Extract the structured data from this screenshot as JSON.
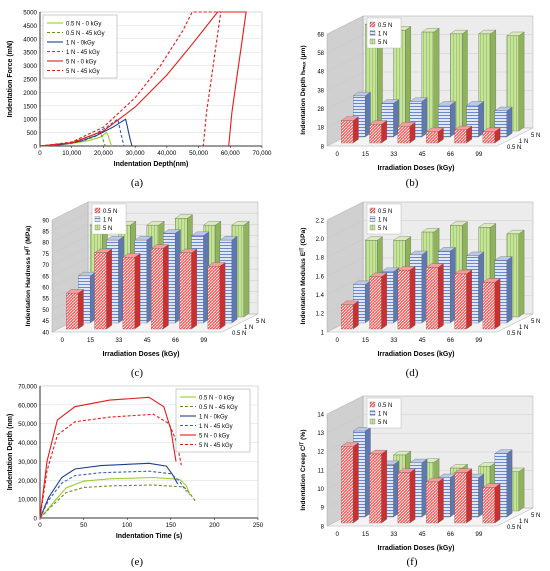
{
  "colors": {
    "green_light": "#9acd32",
    "green_dark": "#6b8e23",
    "blue_dark": "#1f3f8f",
    "blue_mid": "#3a5fb8",
    "red": "#e51b1b",
    "red_fill": "#f36b6b",
    "blue_fill": "#8fa8d8",
    "green_fill": "#b6d98b",
    "axis": "#000000",
    "grid": "#d9d9d9"
  },
  "captions": {
    "a": "(a)",
    "b": "(b)",
    "c": "(c)",
    "d": "(d)",
    "e": "(e)",
    "f": "(f)"
  },
  "chart_data": [
    {
      "id": "a",
      "type": "line",
      "xlabel": "Indentation Depth(nm)",
      "ylabel": "Indentation Force (mN)",
      "xlim": [
        0,
        70000
      ],
      "ylim": [
        0,
        5000
      ],
      "xticks": [
        "0",
        "10,000",
        "20,000",
        "30,000",
        "40,000",
        "50,000",
        "60,000",
        "70,000"
      ],
      "yticks": [
        "0",
        "500",
        "1000",
        "1500",
        "2000",
        "2500",
        "3000",
        "3500",
        "4000",
        "4500",
        "5000"
      ],
      "legend_position": "top-left",
      "series": [
        {
          "name": "0.5 N - 0 kGy",
          "color": "#9acd32",
          "dash": false,
          "load": [
            [
              0,
              0
            ],
            [
              5000,
              30
            ],
            [
              10000,
              90
            ],
            [
              15000,
              190
            ],
            [
              19000,
              330
            ],
            [
              21000,
              500
            ]
          ],
          "unload": [
            [
              21000,
              500
            ],
            [
              21500,
              380
            ],
            [
              21900,
              230
            ],
            [
              22300,
              90
            ],
            [
              22600,
              0
            ]
          ]
        },
        {
          "name": "0.5 N - 45 kGy",
          "color": "#6b8e23",
          "dash": true,
          "load": [
            [
              0,
              0
            ],
            [
              5000,
              30
            ],
            [
              10000,
              100
            ],
            [
              14000,
              210
            ],
            [
              17500,
              360
            ],
            [
              19000,
              500
            ]
          ],
          "unload": [
            [
              19000,
              500
            ],
            [
              19500,
              380
            ],
            [
              19900,
              230
            ],
            [
              20300,
              90
            ],
            [
              20600,
              0
            ]
          ]
        },
        {
          "name": "1 N - 0kGy",
          "color": "#1f3f8f",
          "dash": false,
          "load": [
            [
              0,
              0
            ],
            [
              7000,
              60
            ],
            [
              13000,
              190
            ],
            [
              18000,
              400
            ],
            [
              23000,
              700
            ],
            [
              27000,
              1000
            ]
          ],
          "unload": [
            [
              27000,
              1000
            ],
            [
              27500,
              750
            ],
            [
              28000,
              470
            ],
            [
              28500,
              220
            ],
            [
              29000,
              0
            ]
          ]
        },
        {
          "name": "1 N - 45 kGy",
          "color": "#3a5fb8",
          "dash": true,
          "load": [
            [
              0,
              0
            ],
            [
              7000,
              70
            ],
            [
              12000,
              200
            ],
            [
              17000,
              420
            ],
            [
              21000,
              700
            ],
            [
              24500,
              1000
            ]
          ],
          "unload": [
            [
              24500,
              1000
            ],
            [
              25000,
              750
            ],
            [
              25500,
              470
            ],
            [
              26000,
              220
            ],
            [
              26500,
              0
            ]
          ]
        },
        {
          "name": "5 N - 0 kGy",
          "color": "#e51b1b",
          "dash": false,
          "load": [
            [
              0,
              0
            ],
            [
              10000,
              120
            ],
            [
              20000,
              560
            ],
            [
              30000,
              1450
            ],
            [
              40000,
              2650
            ],
            [
              48000,
              3800
            ],
            [
              54000,
              4700
            ],
            [
              56000,
              5000
            ],
            [
              65000,
              5000
            ]
          ],
          "unload": [
            [
              65000,
              5000
            ],
            [
              63500,
              3750
            ],
            [
              62000,
              2500
            ],
            [
              60500,
              1250
            ],
            [
              59500,
              0
            ]
          ]
        },
        {
          "name": "5 N - 45 kGy",
          "color": "#e51b1b",
          "dash": true,
          "load": [
            [
              0,
              0
            ],
            [
              10000,
              150
            ],
            [
              20000,
              700
            ],
            [
              30000,
              1800
            ],
            [
              38000,
              3000
            ],
            [
              45000,
              4300
            ],
            [
              48000,
              5000
            ],
            [
              57000,
              5000
            ]
          ],
          "unload": [
            [
              57000,
              5000
            ],
            [
              55500,
              3750
            ],
            [
              54000,
              2500
            ],
            [
              52500,
              1250
            ],
            [
              51500,
              0
            ]
          ]
        }
      ]
    },
    {
      "id": "b",
      "type": "bar3d",
      "ylabel": "Indentation Depth hₘₐₓ (µm)",
      "xlabel": "Irradiation Doses (kGy)",
      "categories": [
        "0",
        "15",
        "33",
        "45",
        "66",
        "99"
      ],
      "depth_labels": [
        "0.5 N",
        "1 N",
        "5 N"
      ],
      "yticks": [
        "8",
        "18",
        "28",
        "38",
        "48",
        "58",
        "68"
      ],
      "ylim": [
        8,
        68
      ],
      "series": [
        {
          "name": "0.5 N",
          "values": [
            20,
            18,
            17,
            14,
            15,
            14
          ]
        },
        {
          "name": "1 N",
          "values": [
            30,
            26,
            27,
            25,
            25,
            22
          ]
        },
        {
          "name": "5 N",
          "values": [
            65,
            62,
            61,
            60,
            60,
            59
          ]
        }
      ]
    },
    {
      "id": "c",
      "type": "bar3d",
      "ylabel": "Indentation Hardness Hᴵᵀ (MPa)",
      "xlabel": "Irradiation Doses (kGy)",
      "categories": [
        "0",
        "15",
        "33",
        "45",
        "66",
        "99"
      ],
      "depth_labels": [
        "0.5 N",
        "1 N",
        "5 N"
      ],
      "yticks": [
        "40",
        "45",
        "50",
        "55",
        "60",
        "65",
        "70",
        "75",
        "80",
        "85",
        "90"
      ],
      "ylim": [
        40,
        90
      ],
      "series": [
        {
          "name": "0.5 N",
          "values": [
            56,
            74,
            72,
            76,
            74,
            68
          ]
        },
        {
          "name": "1 N",
          "values": [
            61,
            77,
            77,
            80,
            79,
            77
          ]
        },
        {
          "name": "5 N",
          "values": [
            81,
            81,
            81,
            84,
            81,
            81
          ]
        }
      ]
    },
    {
      "id": "d",
      "type": "bar3d",
      "ylabel": "Indentation Modulus Eᴵᵀ (GPa)",
      "xlabel": "Irradiation Doses (kGy)",
      "categories": [
        "0",
        "15",
        "33",
        "45",
        "66",
        "99"
      ],
      "depth_labels": [
        "0.5 N",
        "1 N",
        "5 N"
      ],
      "yticks": [
        "1",
        "1.2",
        "1.4",
        "1.6",
        "1.8",
        "2.0",
        "2.2"
      ],
      "ylim": [
        1,
        2.2
      ],
      "series": [
        {
          "name": "0.5 N",
          "values": [
            1.26,
            1.56,
            1.63,
            1.66,
            1.59,
            1.5
          ]
        },
        {
          "name": "1 N",
          "values": [
            1.41,
            1.55,
            1.73,
            1.77,
            1.72,
            1.67
          ]
        },
        {
          "name": "5 N",
          "values": [
            1.82,
            1.82,
            1.91,
            1.98,
            1.96,
            1.89
          ]
        }
      ]
    },
    {
      "id": "e",
      "type": "line",
      "xlabel": "Indentation Time (s)",
      "ylabel": "Indentation Depth (nm)",
      "xlim": [
        0,
        250
      ],
      "ylim": [
        0,
        70000
      ],
      "xticks": [
        "0",
        "50",
        "100",
        "150",
        "200",
        "250"
      ],
      "yticks": [
        "0",
        "10,000",
        "20,000",
        "30,000",
        "40,000",
        "50,000",
        "60,000",
        "70,000"
      ],
      "legend_position": "top-right",
      "series": [
        {
          "name": "0.5 N - 0 kGy",
          "color": "#9acd32",
          "dash": false,
          "points": [
            [
              0,
              0
            ],
            [
              15,
              8000
            ],
            [
              30,
              16000
            ],
            [
              50,
              19500
            ],
            [
              80,
              20800
            ],
            [
              130,
              21500
            ],
            [
              160,
              20500
            ],
            [
              168,
              17000
            ],
            [
              172,
              12000
            ]
          ]
        },
        {
          "name": "0.5 N - 45 kGy",
          "color": "#6b8e23",
          "dash": true,
          "points": [
            [
              0,
              0
            ],
            [
              15,
              7000
            ],
            [
              30,
              13500
            ],
            [
              50,
              16200
            ],
            [
              80,
              17000
            ],
            [
              130,
              17500
            ],
            [
              165,
              16500
            ],
            [
              172,
              13000
            ],
            [
              178,
              9000
            ]
          ]
        },
        {
          "name": "1 N - 0kGy",
          "color": "#1f3f8f",
          "dash": false,
          "points": [
            [
              0,
              0
            ],
            [
              10,
              11000
            ],
            [
              25,
              21500
            ],
            [
              40,
              26000
            ],
            [
              70,
              27800
            ],
            [
              125,
              29000
            ],
            [
              145,
              27500
            ],
            [
              152,
              23000
            ],
            [
              158,
              18000
            ]
          ]
        },
        {
          "name": "1 N - 45 kGy",
          "color": "#3a5fb8",
          "dash": true,
          "points": [
            [
              0,
              0
            ],
            [
              10,
              9500
            ],
            [
              25,
              18500
            ],
            [
              40,
              22500
            ],
            [
              70,
              24000
            ],
            [
              125,
              24800
            ],
            [
              150,
              23500
            ],
            [
              160,
              19500
            ],
            [
              168,
              14000
            ]
          ]
        },
        {
          "name": "5 N - 0 kGy",
          "color": "#e51b1b",
          "dash": false,
          "points": [
            [
              0,
              0
            ],
            [
              8,
              30000
            ],
            [
              20,
              52000
            ],
            [
              40,
              59000
            ],
            [
              80,
              62500
            ],
            [
              125,
              64000
            ],
            [
              142,
              59000
            ],
            [
              150,
              47000
            ],
            [
              156,
              30000
            ]
          ]
        },
        {
          "name": "5 N - 45 kGy",
          "color": "#e51b1b",
          "dash": true,
          "points": [
            [
              0,
              0
            ],
            [
              8,
              25000
            ],
            [
              20,
              44000
            ],
            [
              40,
              51000
            ],
            [
              80,
              53500
            ],
            [
              130,
              55000
            ],
            [
              148,
              50000
            ],
            [
              157,
              40000
            ],
            [
              162,
              28000
            ]
          ]
        }
      ]
    },
    {
      "id": "f",
      "type": "bar3d",
      "ylabel": "Indentation Creep Cᴵᵀ (%)",
      "xlabel": "Irradiation Doses (kGy)",
      "categories": [
        "0",
        "15",
        "33",
        "45",
        "66",
        "99"
      ],
      "depth_labels": [
        "0.5 N",
        "1 N",
        "5 N"
      ],
      "yticks": [
        "8",
        "9",
        "10",
        "11",
        "12",
        "13",
        "14"
      ],
      "ylim": [
        8,
        14
      ],
      "series": [
        {
          "name": "0.5 N",
          "values": [
            12.1,
            11.7,
            10.7,
            10.2,
            10.7,
            9.9
          ]
        },
        {
          "name": "1 N",
          "values": [
            12.6,
            10.8,
            10.9,
            10.1,
            10.1,
            11.4
          ]
        },
        {
          "name": "5 N",
          "values": [
            10.9,
            11.0,
            10.6,
            10.3,
            10.4,
            10.1
          ]
        }
      ]
    }
  ]
}
